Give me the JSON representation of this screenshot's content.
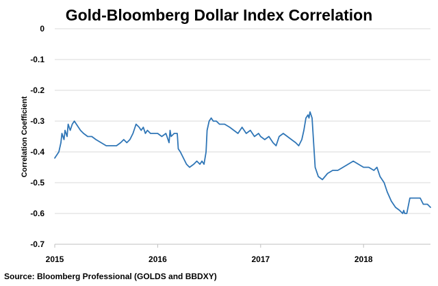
{
  "source_note": "Source: Bloomberg Professional  (GOLDS and BBDXY)",
  "colors": {
    "series": "#2e75b6",
    "grid": "#d9d9d9",
    "text": "#000000"
  },
  "chart_data": {
    "type": "line",
    "title": "Gold-Bloomberg Dollar Index Correlation",
    "xlabel": "",
    "ylabel": "Correlation Coefficient",
    "xlim": [
      2015.0,
      2018.65
    ],
    "ylim": [
      -0.7,
      0
    ],
    "y_ticks": [
      0,
      -0.1,
      -0.2,
      -0.3,
      -0.4,
      -0.5,
      -0.6,
      -0.7
    ],
    "y_tick_labels": [
      "0",
      "-0.1",
      "-0.2",
      "-0.3",
      "-0.4",
      "-0.5",
      "-0.6",
      "-0.7"
    ],
    "x_ticks": [
      2015,
      2016,
      2017,
      2018
    ],
    "x_tick_labels": [
      "2015",
      "2016",
      "2017",
      "2018"
    ],
    "grid": true,
    "series": [
      {
        "name": "Gold-Bloomberg Dollar Index Correlation",
        "x": [
          2015.0,
          2015.02,
          2015.04,
          2015.06,
          2015.07,
          2015.09,
          2015.1,
          2015.12,
          2015.13,
          2015.15,
          2015.16,
          2015.17,
          2015.19,
          2015.21,
          2015.23,
          2015.25,
          2015.28,
          2015.32,
          2015.36,
          2015.4,
          2015.45,
          2015.5,
          2015.55,
          2015.6,
          2015.64,
          2015.67,
          2015.7,
          2015.73,
          2015.76,
          2015.79,
          2015.82,
          2015.84,
          2015.86,
          2015.88,
          2015.9,
          2015.93,
          2015.96,
          2016.0,
          2016.04,
          2016.08,
          2016.1,
          2016.11,
          2016.12,
          2016.13,
          2016.16,
          2016.19,
          2016.2,
          2016.22,
          2016.25,
          2016.28,
          2016.31,
          2016.35,
          2016.38,
          2016.41,
          2016.43,
          2016.45,
          2016.47,
          2016.48,
          2016.5,
          2016.52,
          2016.54,
          2016.57,
          2016.6,
          2016.65,
          2016.7,
          2016.74,
          2016.78,
          2016.82,
          2016.86,
          2016.9,
          2016.94,
          2016.98,
          2017.0,
          2017.04,
          2017.08,
          2017.12,
          2017.15,
          2017.18,
          2017.22,
          2017.26,
          2017.3,
          2017.34,
          2017.37,
          2017.4,
          2017.42,
          2017.44,
          2017.46,
          2017.47,
          2017.48,
          2017.5,
          2017.53,
          2017.56,
          2017.6,
          2017.65,
          2017.7,
          2017.75,
          2017.8,
          2017.85,
          2017.9,
          2017.95,
          2018.0,
          2018.05,
          2018.1,
          2018.13,
          2018.16,
          2018.2,
          2018.23,
          2018.27,
          2018.31,
          2018.35,
          2018.38,
          2018.39,
          2018.4,
          2018.42,
          2018.45,
          2018.5,
          2018.55,
          2018.58,
          2018.62,
          2018.65
        ],
        "values": [
          -0.42,
          -0.41,
          -0.4,
          -0.37,
          -0.34,
          -0.36,
          -0.33,
          -0.35,
          -0.31,
          -0.33,
          -0.32,
          -0.31,
          -0.3,
          -0.31,
          -0.32,
          -0.33,
          -0.34,
          -0.35,
          -0.35,
          -0.36,
          -0.37,
          -0.38,
          -0.38,
          -0.38,
          -0.37,
          -0.36,
          -0.37,
          -0.36,
          -0.34,
          -0.31,
          -0.32,
          -0.33,
          -0.32,
          -0.34,
          -0.33,
          -0.34,
          -0.34,
          -0.34,
          -0.35,
          -0.34,
          -0.36,
          -0.37,
          -0.33,
          -0.35,
          -0.34,
          -0.34,
          -0.39,
          -0.4,
          -0.42,
          -0.44,
          -0.45,
          -0.44,
          -0.43,
          -0.44,
          -0.43,
          -0.44,
          -0.4,
          -0.33,
          -0.3,
          -0.29,
          -0.3,
          -0.3,
          -0.31,
          -0.31,
          -0.32,
          -0.33,
          -0.34,
          -0.32,
          -0.34,
          -0.33,
          -0.35,
          -0.34,
          -0.35,
          -0.36,
          -0.35,
          -0.37,
          -0.38,
          -0.35,
          -0.34,
          -0.35,
          -0.36,
          -0.37,
          -0.38,
          -0.36,
          -0.33,
          -0.29,
          -0.28,
          -0.29,
          -0.27,
          -0.29,
          -0.45,
          -0.48,
          -0.49,
          -0.47,
          -0.46,
          -0.46,
          -0.45,
          -0.44,
          -0.43,
          -0.44,
          -0.45,
          -0.45,
          -0.46,
          -0.45,
          -0.48,
          -0.5,
          -0.53,
          -0.56,
          -0.58,
          -0.59,
          -0.6,
          -0.59,
          -0.6,
          -0.6,
          -0.55,
          -0.55,
          -0.55,
          -0.57,
          -0.57,
          -0.58
        ]
      }
    ]
  }
}
